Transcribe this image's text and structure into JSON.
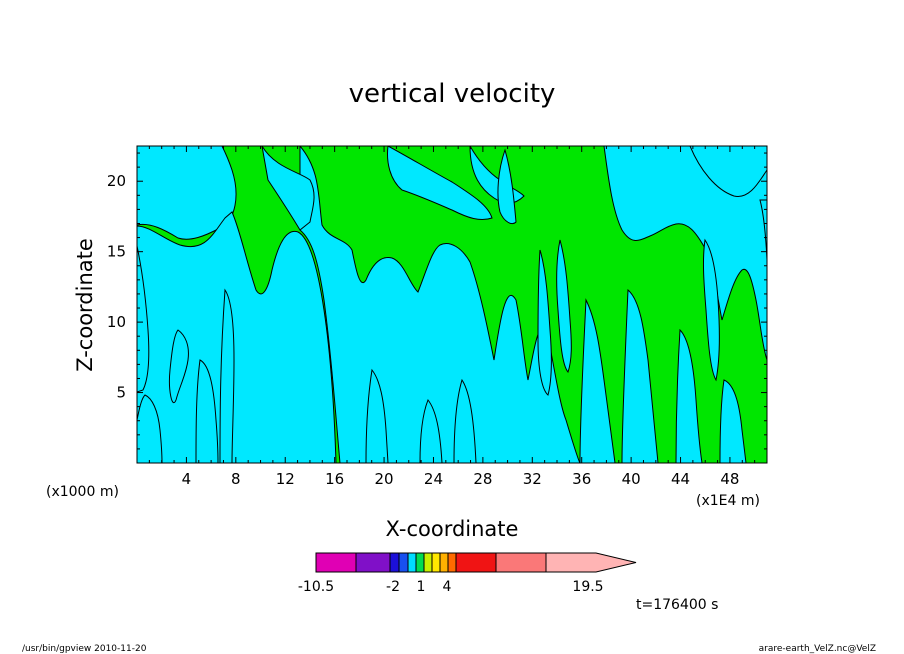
{
  "chart_data": {
    "type": "heatmap",
    "title": "vertical velocity",
    "xlabel": "X-coordinate",
    "ylabel": "Z-coordinate",
    "x_scale_label": "(x1000 m)",
    "x_scale_label_right": "(x1E4 m)",
    "x_ticks": [
      "4",
      "8",
      "12",
      "16",
      "20",
      "24",
      "28",
      "32",
      "36",
      "40",
      "44",
      "48"
    ],
    "y_ticks": [
      "5",
      "10",
      "15",
      "20"
    ],
    "xlim": [
      0,
      51
    ],
    "ylim": [
      0,
      22.5
    ],
    "colorbar": {
      "tick_labels": [
        "-10.5",
        "-2",
        "1",
        "4",
        "19.5"
      ],
      "colors": [
        "#e000b4",
        "#8010c8",
        "#1c10d8",
        "#1850f0",
        "#00dcff",
        "#00dc50",
        "#c8f000",
        "#ffe800",
        "#ffb000",
        "#ff6a00",
        "#f01414",
        "#fa7878",
        "#ffb4b4"
      ]
    },
    "time_label": "t=176400 s",
    "field_colors": {
      "positive": "#00e600",
      "negative": "#00e8ff"
    }
  },
  "footer": {
    "left": "/usr/bin/gpview   2010-11-20",
    "right": "arare-earth_VelZ.nc@VelZ"
  }
}
